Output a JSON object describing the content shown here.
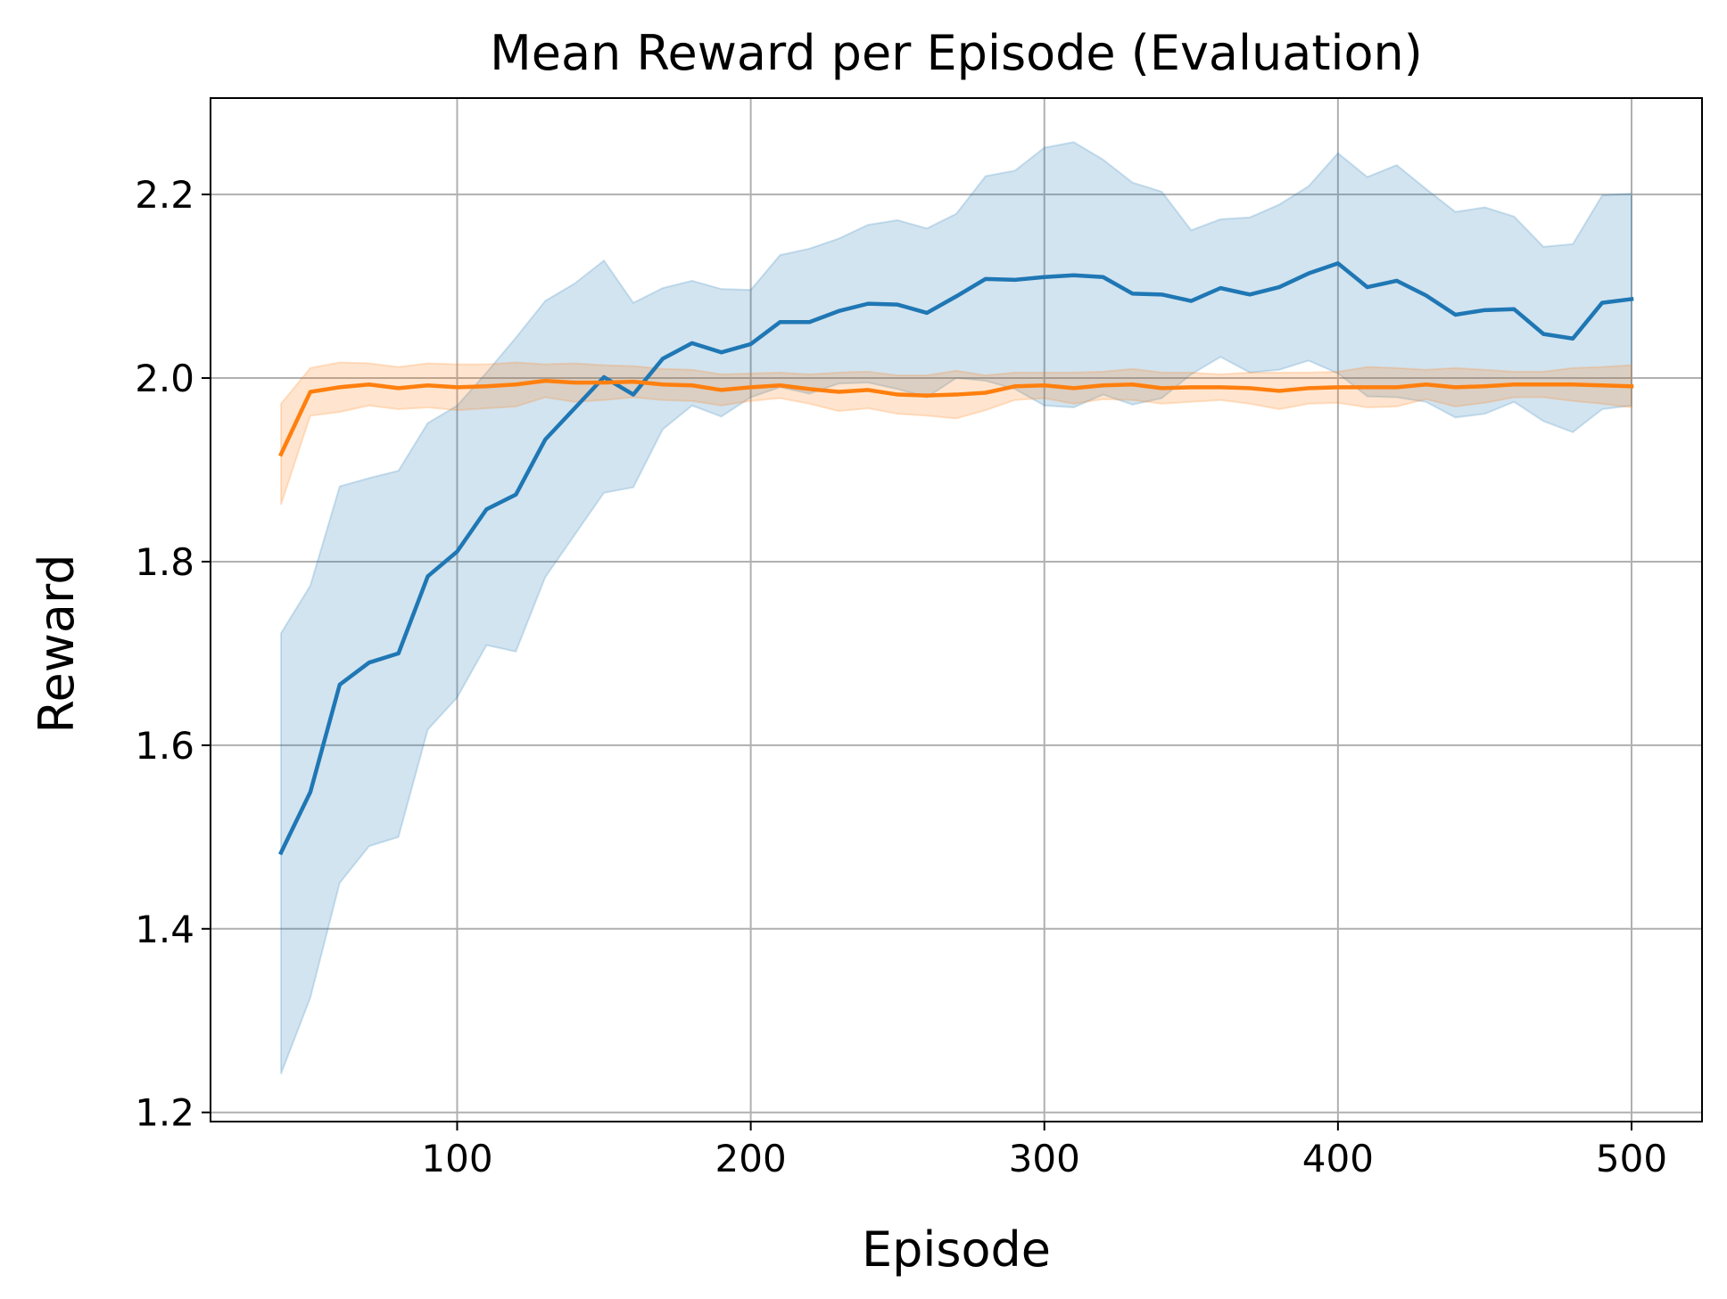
{
  "chart_data": {
    "type": "line",
    "title": "Mean Reward per Episode (Evaluation)",
    "xlabel": "Episode",
    "ylabel": "Reward",
    "xlim": [
      16,
      524
    ],
    "ylim": [
      1.19,
      2.305
    ],
    "xticks": [
      100,
      200,
      300,
      400,
      500
    ],
    "xtick_labels": [
      "100",
      "200",
      "300",
      "400",
      "500"
    ],
    "yticks": [
      1.2,
      1.4,
      1.6,
      1.8,
      2.0,
      2.2
    ],
    "ytick_labels": [
      "1.2",
      "1.4",
      "1.6",
      "1.8",
      "2.0",
      "2.2"
    ],
    "grid": true,
    "x": [
      40,
      50,
      60,
      70,
      80,
      90,
      100,
      110,
      120,
      130,
      140,
      150,
      160,
      170,
      180,
      190,
      200,
      210,
      220,
      230,
      240,
      250,
      260,
      270,
      280,
      290,
      300,
      310,
      320,
      330,
      340,
      350,
      360,
      370,
      380,
      390,
      400,
      410,
      420,
      430,
      440,
      450,
      460,
      470,
      480,
      490,
      500
    ],
    "series": [
      {
        "name": "blue",
        "color": "#1f77b4",
        "values": [
          1.483,
          1.549,
          1.666,
          1.69,
          1.7,
          1.784,
          1.811,
          1.857,
          1.873,
          1.933,
          1.967,
          2.001,
          1.982,
          2.021,
          2.038,
          2.028,
          2.037,
          2.061,
          2.061,
          2.073,
          2.081,
          2.08,
          2.071,
          2.089,
          2.108,
          2.107,
          2.11,
          2.112,
          2.11,
          2.092,
          2.091,
          2.084,
          2.098,
          2.091,
          2.099,
          2.114,
          2.125,
          2.099,
          2.106,
          2.09,
          2.069,
          2.074,
          2.075,
          2.048,
          2.043,
          2.082,
          2.086
        ],
        "lower": [
          1.242,
          1.325,
          1.45,
          1.49,
          1.5,
          1.617,
          1.652,
          1.709,
          1.702,
          1.783,
          1.829,
          1.875,
          1.881,
          1.944,
          1.97,
          1.958,
          1.979,
          1.99,
          1.983,
          1.994,
          1.995,
          1.988,
          1.979,
          2.0,
          1.997,
          1.988,
          1.97,
          1.968,
          1.982,
          1.971,
          1.978,
          2.004,
          2.023,
          2.006,
          2.009,
          2.019,
          2.005,
          1.98,
          1.979,
          1.974,
          1.957,
          1.961,
          1.974,
          1.953,
          1.941,
          1.966,
          1.97
        ],
        "upper": [
          1.722,
          1.774,
          1.882,
          1.891,
          1.899,
          1.951,
          1.97,
          2.006,
          2.044,
          2.084,
          2.103,
          2.128,
          2.082,
          2.098,
          2.106,
          2.097,
          2.096,
          2.134,
          2.141,
          2.152,
          2.167,
          2.172,
          2.163,
          2.179,
          2.22,
          2.226,
          2.251,
          2.257,
          2.238,
          2.213,
          2.203,
          2.161,
          2.173,
          2.175,
          2.189,
          2.209,
          2.245,
          2.219,
          2.232,
          2.206,
          2.181,
          2.186,
          2.176,
          2.143,
          2.146,
          2.199,
          2.201
        ]
      },
      {
        "name": "orange",
        "color": "#ff7f0e",
        "values": [
          1.917,
          1.985,
          1.99,
          1.993,
          1.989,
          1.992,
          1.99,
          1.991,
          1.993,
          1.997,
          1.995,
          1.995,
          1.996,
          1.993,
          1.992,
          1.987,
          1.99,
          1.992,
          1.988,
          1.985,
          1.987,
          1.982,
          1.981,
          1.982,
          1.984,
          1.991,
          1.992,
          1.989,
          1.992,
          1.993,
          1.989,
          1.99,
          1.99,
          1.989,
          1.986,
          1.989,
          1.99,
          1.99,
          1.99,
          1.993,
          1.99,
          1.991,
          1.993,
          1.993,
          1.993,
          1.992,
          1.991
        ],
        "lower": [
          1.862,
          1.959,
          1.963,
          1.97,
          1.966,
          1.968,
          1.965,
          1.967,
          1.969,
          1.979,
          1.974,
          1.976,
          1.979,
          1.976,
          1.975,
          1.97,
          1.975,
          1.978,
          1.972,
          1.964,
          1.967,
          1.961,
          1.959,
          1.956,
          1.965,
          1.976,
          1.978,
          1.972,
          1.977,
          1.976,
          1.972,
          1.974,
          1.976,
          1.972,
          1.966,
          1.972,
          1.973,
          1.968,
          1.969,
          1.977,
          1.969,
          1.973,
          1.979,
          1.979,
          1.975,
          1.972,
          1.968
        ],
        "upper": [
          1.972,
          2.011,
          2.017,
          2.016,
          2.012,
          2.016,
          2.015,
          2.015,
          2.017,
          2.015,
          2.016,
          2.014,
          2.013,
          2.01,
          2.009,
          2.004,
          2.005,
          2.006,
          2.004,
          2.006,
          2.007,
          2.003,
          2.003,
          2.008,
          2.003,
          2.006,
          2.006,
          2.006,
          2.007,
          2.01,
          2.006,
          2.006,
          2.004,
          2.006,
          2.006,
          2.006,
          2.007,
          2.012,
          2.011,
          2.009,
          2.011,
          2.009,
          2.007,
          2.007,
          2.011,
          2.012,
          2.014
        ]
      }
    ]
  }
}
